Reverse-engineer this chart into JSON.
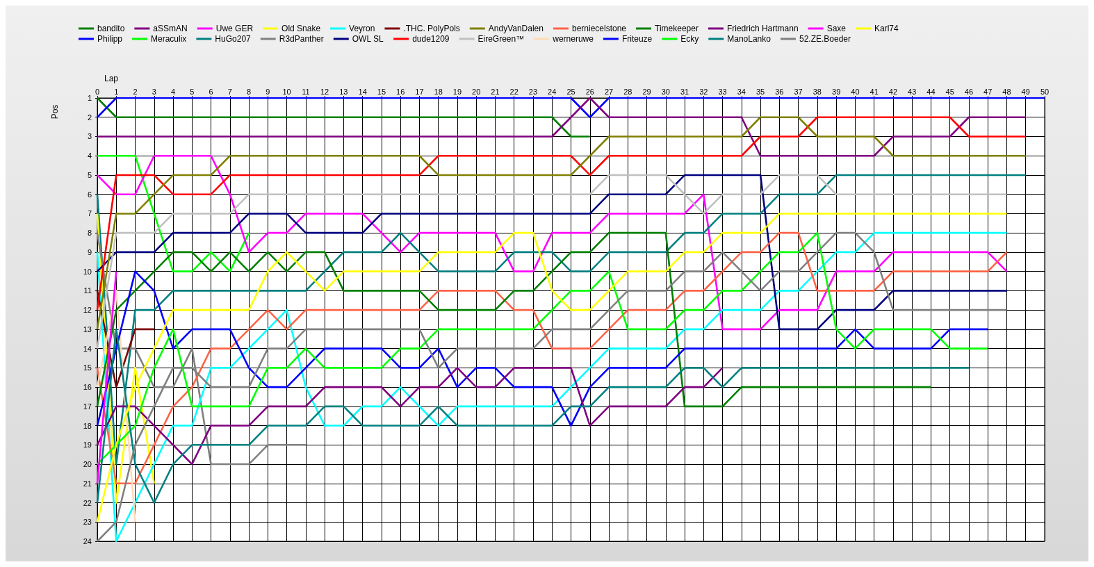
{
  "chart_data": {
    "type": "line",
    "xlabel": "Lap",
    "ylabel": "Pos",
    "x": [
      0,
      1,
      2,
      3,
      4,
      5,
      6,
      7,
      8,
      9,
      10,
      11,
      12,
      13,
      14,
      15,
      16,
      17,
      18,
      19,
      20,
      21,
      22,
      23,
      24,
      25,
      26,
      27,
      28,
      29,
      30,
      31,
      32,
      33,
      34,
      35,
      36,
      37,
      38,
      39,
      40,
      41,
      42,
      43,
      44,
      45,
      46,
      47,
      48,
      49,
      50
    ],
    "xlim": [
      0,
      50
    ],
    "xticks": [
      0,
      1,
      2,
      3,
      4,
      5,
      6,
      7,
      8,
      9,
      10,
      11,
      12,
      13,
      14,
      15,
      16,
      17,
      18,
      19,
      20,
      21,
      22,
      23,
      24,
      25,
      26,
      27,
      28,
      29,
      30,
      31,
      32,
      33,
      34,
      35,
      36,
      37,
      38,
      39,
      40,
      41,
      42,
      43,
      44,
      45,
      46,
      47,
      48,
      49,
      50
    ],
    "ylim": [
      24,
      1
    ],
    "yticks": [
      1,
      2,
      3,
      4,
      5,
      6,
      7,
      8,
      9,
      10,
      11,
      12,
      13,
      14,
      15,
      16,
      17,
      18,
      19,
      20,
      21,
      22,
      23,
      24
    ],
    "grid": true,
    "legend": "top",
    "series": [
      {
        "name": "bandito",
        "color": "#008000",
        "values": [
          1,
          2,
          2,
          2,
          2,
          2,
          2,
          2,
          2,
          2,
          2,
          2,
          2,
          2,
          2,
          2,
          2,
          2,
          2,
          2,
          2,
          2,
          2,
          2,
          2,
          3,
          3,
          null,
          null,
          null,
          null,
          null,
          null,
          null,
          null,
          null,
          null,
          null,
          null,
          null,
          null,
          null,
          null,
          null,
          null,
          null,
          null,
          null,
          null,
          null,
          null
        ]
      },
      {
        "name": "Philipp",
        "color": "#0000ff",
        "values": [
          2,
          1,
          1,
          1,
          1,
          1,
          1,
          1,
          1,
          1,
          1,
          1,
          1,
          1,
          1,
          1,
          1,
          1,
          1,
          1,
          1,
          1,
          1,
          1,
          1,
          1,
          2,
          1,
          1,
          1,
          1,
          1,
          1,
          1,
          1,
          1,
          1,
          1,
          1,
          1,
          1,
          1,
          1,
          1,
          1,
          1,
          1,
          1,
          1,
          1,
          1
        ]
      },
      {
        "name": "aSSmAN",
        "color": "#800080",
        "values": [
          3,
          3,
          3,
          3,
          3,
          3,
          3,
          3,
          3,
          3,
          3,
          3,
          3,
          3,
          3,
          3,
          3,
          3,
          3,
          3,
          3,
          3,
          3,
          3,
          3,
          2,
          1,
          2,
          2,
          2,
          2,
          2,
          2,
          2,
          2,
          4,
          4,
          4,
          4,
          4,
          4,
          4,
          3,
          3,
          3,
          3,
          2,
          2,
          2,
          2,
          null
        ]
      },
      {
        "name": "Meraculix",
        "color": "#00ff00",
        "values": [
          4,
          4,
          4,
          7,
          10,
          10,
          9,
          10,
          8,
          null,
          null,
          null,
          null,
          null,
          null,
          null,
          null,
          null,
          null,
          null,
          null,
          null,
          null,
          null,
          null,
          null,
          null,
          null,
          null,
          null,
          null,
          null,
          null,
          null,
          null,
          null,
          null,
          null,
          null,
          null,
          null,
          null,
          null,
          null,
          null,
          null,
          null,
          null,
          null,
          null,
          null
        ]
      },
      {
        "name": "Uwe GER",
        "color": "#ff00ff",
        "values": [
          5,
          6,
          6,
          4,
          4,
          4,
          4,
          6,
          9,
          8,
          8,
          7,
          7,
          7,
          7,
          8,
          9,
          8,
          8,
          8,
          8,
          8,
          10,
          10,
          8,
          8,
          8,
          7,
          7,
          7,
          7,
          7,
          6,
          13,
          13,
          13,
          12,
          12,
          12,
          10,
          10,
          10,
          9,
          9,
          9,
          9,
          9,
          9,
          10,
          null,
          null
        ]
      },
      {
        "name": "HuGo207",
        "color": "#008080",
        "values": [
          6,
          20,
          12,
          12,
          11,
          11,
          11,
          11,
          11,
          11,
          11,
          11,
          10,
          9,
          9,
          9,
          8,
          9,
          10,
          10,
          10,
          10,
          9,
          9,
          9,
          10,
          10,
          9,
          9,
          9,
          9,
          8,
          8,
          7,
          7,
          7,
          6,
          6,
          6,
          5,
          5,
          5,
          5,
          5,
          5,
          5,
          5,
          5,
          5,
          5,
          null
        ]
      },
      {
        "name": "Old Snake",
        "color": "#ffff00",
        "values": [
          7,
          22,
          15,
          21,
          null,
          null,
          null,
          null,
          null,
          null,
          null,
          null,
          null,
          null,
          null,
          null,
          null,
          null,
          null,
          null,
          null,
          null,
          null,
          null,
          null,
          null,
          null,
          null,
          null,
          null,
          null,
          null,
          null,
          null,
          null,
          null,
          null,
          null,
          null,
          null,
          null,
          null,
          null,
          null,
          null,
          null,
          null,
          null,
          null,
          null,
          null
        ]
      },
      {
        "name": "R3dPanther",
        "color": "#808080",
        "values": [
          8,
          14,
          14,
          16,
          16,
          14,
          20,
          20,
          20,
          19,
          19,
          19,
          null,
          null,
          null,
          null,
          null,
          null,
          null,
          null,
          null,
          null,
          null,
          null,
          null,
          null,
          null,
          null,
          null,
          null,
          null,
          null,
          null,
          null,
          null,
          null,
          null,
          null,
          null,
          null,
          null,
          null,
          null,
          null,
          null,
          null,
          null,
          null,
          null,
          null,
          null
        ]
      },
      {
        "name": "Veyron",
        "color": "#00ffff",
        "values": [
          9,
          24,
          22,
          20,
          18,
          18,
          15,
          15,
          14,
          13,
          12,
          16,
          18,
          18,
          17,
          17,
          16,
          17,
          18,
          17,
          17,
          17,
          17,
          17,
          17,
          16,
          15,
          14,
          14,
          14,
          14,
          13,
          13,
          12,
          12,
          12,
          11,
          11,
          10,
          9,
          9,
          8,
          8,
          8,
          8,
          8,
          8,
          8,
          8,
          null,
          null
        ]
      },
      {
        "name": "OWL SL",
        "color": "#000080",
        "values": [
          10,
          9,
          9,
          9,
          8,
          8,
          8,
          8,
          7,
          7,
          7,
          8,
          8,
          8,
          8,
          7,
          7,
          7,
          7,
          7,
          7,
          7,
          7,
          7,
          7,
          7,
          7,
          6,
          6,
          6,
          6,
          5,
          5,
          5,
          5,
          5,
          13,
          13,
          13,
          12,
          12,
          12,
          11,
          11,
          11,
          11,
          11,
          11,
          11,
          null,
          null
        ]
      },
      {
        "name": ".THC. PolyPols",
        "color": "#800000",
        "values": [
          11,
          16,
          13,
          13,
          null,
          null,
          null,
          null,
          null,
          null,
          null,
          null,
          null,
          null,
          null,
          null,
          null,
          null,
          null,
          null,
          null,
          null,
          null,
          null,
          null,
          null,
          null,
          null,
          null,
          null,
          null,
          null,
          null,
          null,
          null,
          null,
          null,
          null,
          null,
          null,
          null,
          null,
          null,
          null,
          null,
          null,
          null,
          null,
          null,
          null,
          null
        ]
      },
      {
        "name": "dude1209",
        "color": "#ff0000",
        "values": [
          12,
          5,
          5,
          5,
          6,
          6,
          6,
          5,
          5,
          5,
          5,
          5,
          5,
          5,
          5,
          5,
          5,
          5,
          4,
          4,
          4,
          4,
          4,
          4,
          4,
          4,
          5,
          4,
          4,
          4,
          4,
          4,
          4,
          4,
          4,
          3,
          3,
          3,
          2,
          2,
          2,
          2,
          2,
          2,
          2,
          2,
          3,
          3,
          3,
          3,
          null
        ]
      },
      {
        "name": "AndyVanDalen",
        "color": "#808000",
        "values": [
          13,
          7,
          7,
          6,
          5,
          5,
          5,
          4,
          4,
          4,
          4,
          4,
          4,
          4,
          4,
          4,
          4,
          4,
          5,
          5,
          5,
          5,
          5,
          5,
          5,
          5,
          4,
          3,
          3,
          3,
          3,
          3,
          3,
          3,
          3,
          2,
          2,
          2,
          3,
          3,
          3,
          3,
          4,
          4,
          4,
          4,
          4,
          4,
          4,
          4,
          null
        ]
      },
      {
        "name": "EireGreen™",
        "color": "#c0c0c0",
        "values": [
          14,
          8,
          8,
          8,
          7,
          7,
          7,
          7,
          6,
          6,
          6,
          6,
          6,
          6,
          6,
          6,
          6,
          6,
          6,
          6,
          6,
          6,
          6,
          6,
          6,
          6,
          6,
          5,
          5,
          5,
          5,
          6,
          7,
          6,
          6,
          6,
          5,
          5,
          5,
          6,
          6,
          6,
          6,
          6,
          6,
          6,
          6,
          6,
          6,
          null,
          null
        ]
      },
      {
        "name": "berniecelstone",
        "color": "#ff6347",
        "values": [
          15,
          21,
          21,
          19,
          17,
          16,
          14,
          14,
          13,
          12,
          13,
          12,
          12,
          12,
          12,
          12,
          12,
          12,
          11,
          11,
          11,
          11,
          12,
          12,
          14,
          14,
          14,
          13,
          12,
          12,
          12,
          11,
          11,
          10,
          9,
          9,
          8,
          8,
          11,
          11,
          11,
          11,
          10,
          10,
          10,
          10,
          10,
          10,
          9,
          null,
          null
        ]
      },
      {
        "name": "werneruwe",
        "color": "#ffdab9",
        "values": [
          16,
          11,
          23,
          null,
          null,
          null,
          null,
          null,
          null,
          null,
          null,
          null,
          null,
          null,
          null,
          null,
          null,
          null,
          null,
          null,
          null,
          null,
          null,
          null,
          null,
          null,
          null,
          null,
          null,
          null,
          null,
          null,
          null,
          null,
          null,
          null,
          null,
          null,
          null,
          null,
          null,
          null,
          null,
          null,
          null,
          null,
          null,
          null,
          null,
          null,
          null
        ]
      },
      {
        "name": "Timekeeper",
        "color": "#008000",
        "values": [
          17,
          12,
          11,
          10,
          9,
          9,
          10,
          9,
          10,
          9,
          10,
          9,
          9,
          11,
          11,
          11,
          11,
          11,
          12,
          12,
          12,
          12,
          11,
          11,
          10,
          9,
          9,
          8,
          8,
          8,
          8,
          17,
          17,
          17,
          16,
          16,
          16,
          16,
          16,
          16,
          16,
          16,
          16,
          16,
          16,
          null,
          null,
          null,
          null,
          null,
          null
        ]
      },
      {
        "name": "Friteuze",
        "color": "#0000ff",
        "values": [
          18,
          14,
          10,
          11,
          14,
          13,
          13,
          13,
          15,
          16,
          16,
          15,
          14,
          14,
          14,
          14,
          15,
          15,
          14,
          16,
          15,
          15,
          16,
          16,
          16,
          18,
          16,
          15,
          15,
          15,
          15,
          14,
          14,
          14,
          14,
          14,
          14,
          14,
          14,
          14,
          13,
          14,
          14,
          14,
          14,
          13,
          13,
          13,
          null,
          null,
          null
        ]
      },
      {
        "name": "Friedrich Hartmann",
        "color": "#800080",
        "values": [
          19,
          17,
          17,
          18,
          19,
          20,
          18,
          18,
          18,
          17,
          17,
          17,
          16,
          16,
          16,
          16,
          17,
          16,
          16,
          15,
          16,
          16,
          15,
          15,
          15,
          15,
          18,
          17,
          17,
          17,
          17,
          16,
          16,
          15,
          null,
          null,
          null,
          null,
          null,
          null,
          null,
          null,
          null,
          null,
          null,
          null,
          null,
          null,
          null,
          null,
          null
        ]
      },
      {
        "name": "Ecky",
        "color": "#00ff00",
        "values": [
          20,
          19,
          18,
          15,
          13,
          17,
          17,
          17,
          17,
          15,
          15,
          14,
          15,
          15,
          15,
          15,
          14,
          14,
          13,
          13,
          13,
          13,
          13,
          13,
          12,
          11,
          11,
          10,
          13,
          13,
          13,
          12,
          12,
          11,
          11,
          10,
          9,
          9,
          8,
          13,
          14,
          13,
          13,
          13,
          13,
          14,
          14,
          14,
          null,
          null,
          null
        ]
      },
      {
        "name": "Saxe",
        "color": "#ff00ff",
        "values": [
          21,
          10,
          null,
          null,
          null,
          null,
          null,
          null,
          null,
          null,
          null,
          null,
          null,
          null,
          null,
          null,
          null,
          null,
          null,
          null,
          null,
          null,
          null,
          null,
          null,
          null,
          null,
          null,
          null,
          null,
          null,
          null,
          null,
          null,
          null,
          null,
          null,
          null,
          null,
          null,
          null,
          null,
          null,
          null,
          null,
          null,
          null,
          null,
          null,
          null,
          null
        ]
      },
      {
        "name": "ManoLanko",
        "color": "#008080",
        "values": [
          22,
          13,
          20,
          22,
          20,
          19,
          19,
          19,
          19,
          18,
          18,
          18,
          17,
          17,
          18,
          18,
          18,
          18,
          17,
          18,
          18,
          18,
          18,
          18,
          18,
          17,
          17,
          16,
          16,
          16,
          16,
          15,
          15,
          16,
          15,
          15,
          15,
          15,
          15,
          15,
          15,
          15,
          15,
          15,
          15,
          15,
          15,
          null,
          null,
          null,
          null
        ]
      },
      {
        "name": "Karl74",
        "color": "#ffff00",
        "values": [
          23,
          19,
          16,
          14,
          12,
          12,
          12,
          12,
          12,
          10,
          9,
          10,
          11,
          10,
          10,
          10,
          10,
          10,
          9,
          9,
          9,
          9,
          8,
          8,
          11,
          12,
          12,
          11,
          10,
          10,
          10,
          9,
          9,
          8,
          8,
          8,
          7,
          7,
          7,
          7,
          7,
          7,
          7,
          7,
          7,
          7,
          7,
          7,
          7,
          null,
          null
        ]
      },
      {
        "name": "52.ZE.Boeder",
        "color": "#808080",
        "values": [
          24,
          23,
          19,
          17,
          15,
          15,
          16,
          16,
          16,
          14,
          14,
          13,
          13,
          13,
          13,
          13,
          13,
          13,
          15,
          14,
          14,
          14,
          14,
          14,
          13,
          13,
          13,
          12,
          11,
          11,
          11,
          10,
          10,
          9,
          10,
          11,
          10,
          10,
          9,
          8,
          8,
          9,
          12,
          12,
          12,
          12,
          12,
          12,
          12,
          null,
          null
        ]
      }
    ]
  }
}
